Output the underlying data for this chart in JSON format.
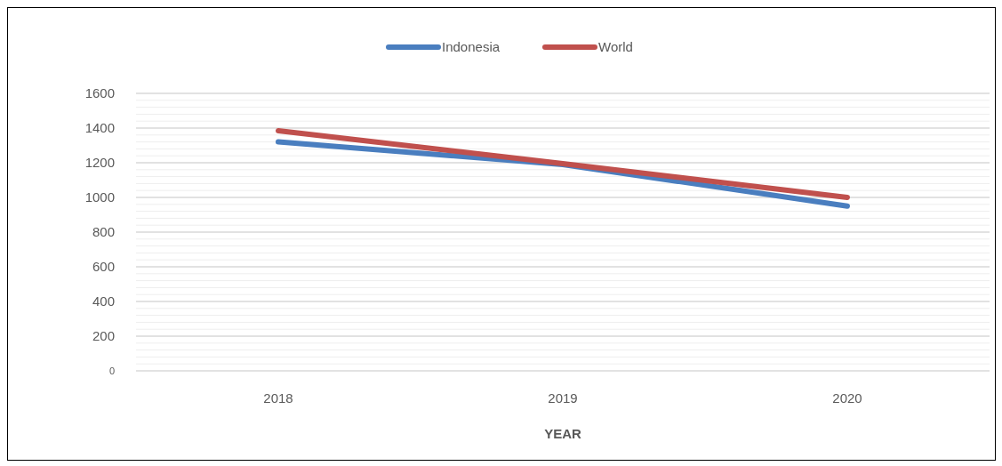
{
  "chart_data": {
    "type": "line",
    "xlabel": "YEAR",
    "categories": [
      "2018",
      "2019",
      "2020"
    ],
    "series": [
      {
        "name": "Indonesia",
        "color": "#4a7ebf",
        "values": [
          1320,
          1190,
          950
        ]
      },
      {
        "name": "World",
        "color": "#c0504d",
        "values": [
          1385,
          1195,
          1000
        ]
      }
    ],
    "ylim": [
      0,
      1600
    ],
    "yticks": [
      0,
      {
        "value": 40,
        "label": null
      },
      {
        "value": 80,
        "label": null
      },
      {
        "value": 120,
        "label": null
      },
      {
        "value": 160,
        "label": null
      },
      200,
      {
        "value": 240,
        "label": null
      },
      {
        "value": 280,
        "label": null
      },
      {
        "value": 320,
        "label": null
      },
      {
        "value": 360,
        "label": null
      },
      400,
      {
        "value": 440,
        "label": null
      },
      {
        "value": 480,
        "label": null
      },
      {
        "value": 520,
        "label": null
      },
      {
        "value": 560,
        "label": null
      },
      600,
      {
        "value": 640,
        "label": null
      },
      {
        "value": 680,
        "label": null
      },
      {
        "value": 720,
        "label": null
      },
      {
        "value": 760,
        "label": null
      },
      800,
      {
        "value": 840,
        "label": null
      },
      {
        "value": 880,
        "label": null
      },
      {
        "value": 920,
        "label": null
      },
      {
        "value": 960,
        "label": null
      },
      1000,
      {
        "value": 1040,
        "label": null
      },
      {
        "value": 1080,
        "label": null
      },
      {
        "value": 1120,
        "label": null
      },
      {
        "value": 1160,
        "label": null
      },
      1200,
      {
        "value": 1240,
        "label": null
      },
      {
        "value": 1280,
        "label": null
      },
      {
        "value": 1320,
        "label": null
      },
      {
        "value": 1360,
        "label": null
      },
      1400,
      {
        "value": 1440,
        "label": null
      },
      {
        "value": 1480,
        "label": null
      },
      {
        "value": 1520,
        "label": null
      },
      {
        "value": 1560,
        "label": null
      },
      1600
    ],
    "grid": "y",
    "legend": "top",
    "line_style": "solid",
    "marker": "none"
  }
}
